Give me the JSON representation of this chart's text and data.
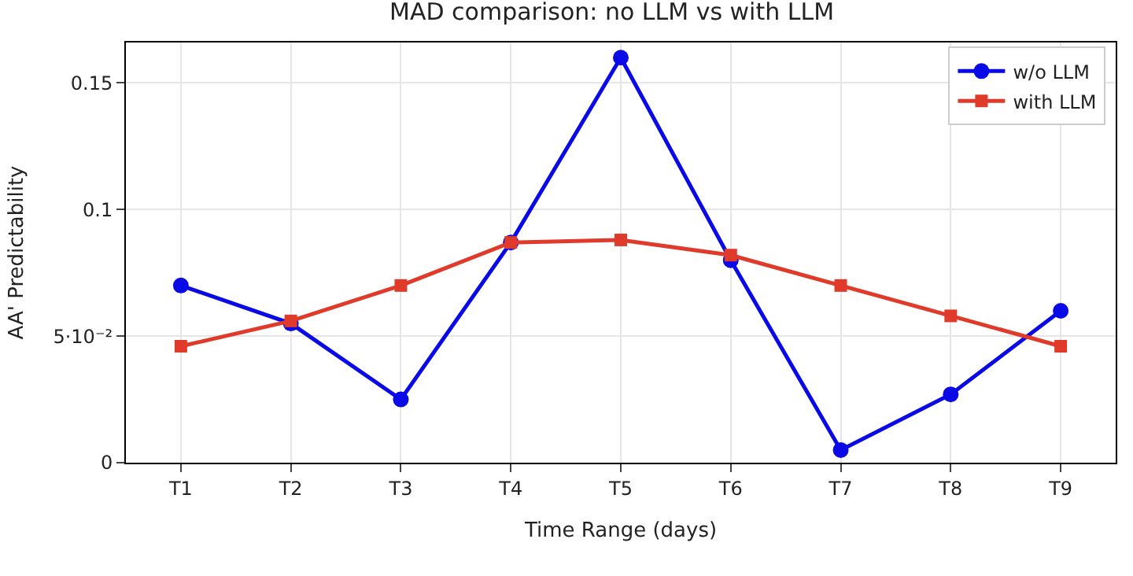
{
  "chart_data": {
    "type": "line",
    "title": "MAD comparison: no LLM vs with LLM",
    "xlabel": "Time Range (days)",
    "ylabel": "AA' Predictability",
    "categories": [
      "T1",
      "T2",
      "T3",
      "T4",
      "T5",
      "T6",
      "T7",
      "T8",
      "T9"
    ],
    "series": [
      {
        "name": "w/o LLM",
        "color": "#0a0ae6",
        "marker": "circle",
        "values": [
          0.07,
          0.055,
          0.025,
          0.087,
          0.16,
          0.08,
          0.005,
          0.027,
          0.06
        ]
      },
      {
        "name": "with LLM",
        "color": "#e03a2a",
        "marker": "square",
        "values": [
          0.046,
          0.056,
          0.07,
          0.087,
          0.088,
          0.082,
          0.07,
          0.058,
          0.046
        ]
      }
    ],
    "ylim": [
      0,
      0.166
    ],
    "yticks": [
      0,
      {
        "value": 0.05,
        "label": "5·10⁻²"
      },
      0.1,
      0.15
    ],
    "grid": true,
    "legend": "top right",
    "line_style": "solid"
  }
}
